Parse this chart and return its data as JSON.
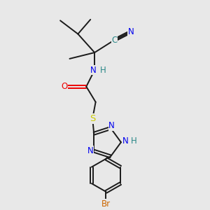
{
  "bg_color": "#e8e8e8",
  "bond_color": "#1a1a1a",
  "N_color": "#0000ee",
  "O_color": "#ee0000",
  "S_color": "#cccc00",
  "Br_color": "#cc6600",
  "C_color": "#2a8888",
  "H_color": "#2a8888",
  "font_size": 8.5,
  "bond_lw": 1.4,
  "figsize": [
    3.0,
    3.0
  ],
  "dpi": 100,
  "xlim": [
    0,
    10
  ],
  "ylim": [
    0,
    10
  ]
}
